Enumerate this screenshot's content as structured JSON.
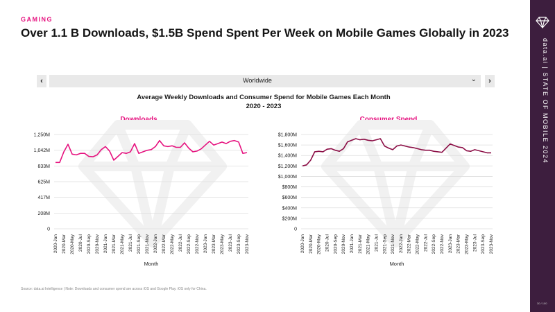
{
  "header": {
    "category": "GAMING",
    "title": "Over 1.1 B Downloads, $1.5B Spend Spent Per Week on Mobile Games Globally in  2023"
  },
  "selector": {
    "value": "Worldwide",
    "prev_icon": "chevron-left-icon",
    "next_icon": "chevron-right-icon",
    "dropdown_icon": "chevron-down-icon"
  },
  "chart_title": {
    "line1": "Average Weekly Downloads and Consumer Spend for Mobile Games Each Month",
    "line2": "2020 - 2023"
  },
  "source": "Source: data.ai Intelligence | Note: Downloads and consumer spend are across iOS and Google Play. iOS only for China.",
  "sidebar": {
    "text": "data.ai | STATE OF MOBILE 2024",
    "page_number": "30 / 100"
  },
  "colors": {
    "downloads_line": "#e6127f",
    "spend_line": "#8b0d45",
    "accent": "#e6127f",
    "sidebar": "#3d1e3e"
  },
  "chart_data": [
    {
      "type": "line",
      "title": "Downloads",
      "xlabel": "Month",
      "ylabel": "",
      "ylim": [
        0,
        1250
      ],
      "yticks": [
        0,
        208,
        417,
        625,
        833,
        1042,
        1250
      ],
      "ytick_labels": [
        "0",
        "208M",
        "417M",
        "625M",
        "833M",
        "1,042M",
        "1,250M"
      ],
      "x_tick_labels": [
        "2020-Jan",
        "2020-Mar",
        "2020-May",
        "2020-Jul",
        "2020-Sep",
        "2020-Nov",
        "2021-Jan",
        "2021-Mar",
        "2021-May",
        "2021-Jul",
        "2021-Sep",
        "2021-Nov",
        "2022-Jan",
        "2022-Mar",
        "2022-May",
        "2022-Jul",
        "2022-Sep",
        "2022-Nov",
        "2023-Jan",
        "2023-Mar",
        "2023-May",
        "2023-Jul",
        "2023-Sep",
        "2023-Nov"
      ],
      "x_count": 47,
      "series": [
        {
          "name": "Downloads",
          "values": [
            880,
            880,
            1020,
            1120,
            990,
            980,
            1000,
            1000,
            960,
            955,
            980,
            1050,
            1090,
            1030,
            910,
            960,
            1010,
            1000,
            1020,
            1130,
            1000,
            1020,
            1040,
            1050,
            1090,
            1170,
            1100,
            1090,
            1100,
            1080,
            1080,
            1140,
            1070,
            1020,
            1030,
            1060,
            1110,
            1160,
            1110,
            1130,
            1150,
            1130,
            1160,
            1170,
            1150,
            1000,
            1010
          ]
        }
      ],
      "grid": true
    },
    {
      "type": "line",
      "title": "Consumer Spend",
      "xlabel": "Month",
      "ylabel": "",
      "ylim": [
        0,
        1800
      ],
      "yticks": [
        0,
        200,
        400,
        600,
        800,
        1000,
        1200,
        1400,
        1600,
        1800
      ],
      "ytick_labels": [
        "0",
        "$200M",
        "$400M",
        "$600M",
        "$800M",
        "$1,000M",
        "$1,200M",
        "$1,400M",
        "$1,600M",
        "$1,800M"
      ],
      "x_tick_labels": [
        "2020-Jan",
        "2020-Mar",
        "2020-May",
        "2020-Jul",
        "2020-Sep",
        "2020-Nov",
        "2021-Jan",
        "2021-Mar",
        "2021-May",
        "2021-Jul",
        "2021-Sep",
        "2021-Nov",
        "2022-Jan",
        "2022-Mar",
        "2022-May",
        "2022-Jul",
        "2022-Sep",
        "2022-Nov",
        "2023-Jan",
        "2023-Mar",
        "2023-May",
        "2023-Jul",
        "2023-Sep",
        "2023-Nov"
      ],
      "x_count": 47,
      "series": [
        {
          "name": "Consumer Spend",
          "values": [
            1200,
            1220,
            1310,
            1470,
            1480,
            1470,
            1520,
            1530,
            1500,
            1480,
            1530,
            1660,
            1690,
            1720,
            1700,
            1710,
            1690,
            1680,
            1700,
            1720,
            1580,
            1540,
            1510,
            1580,
            1600,
            1580,
            1560,
            1550,
            1530,
            1510,
            1500,
            1500,
            1480,
            1470,
            1460,
            1540,
            1620,
            1590,
            1560,
            1550,
            1490,
            1480,
            1510,
            1490,
            1470,
            1450,
            1450
          ]
        }
      ],
      "grid": true
    }
  ]
}
